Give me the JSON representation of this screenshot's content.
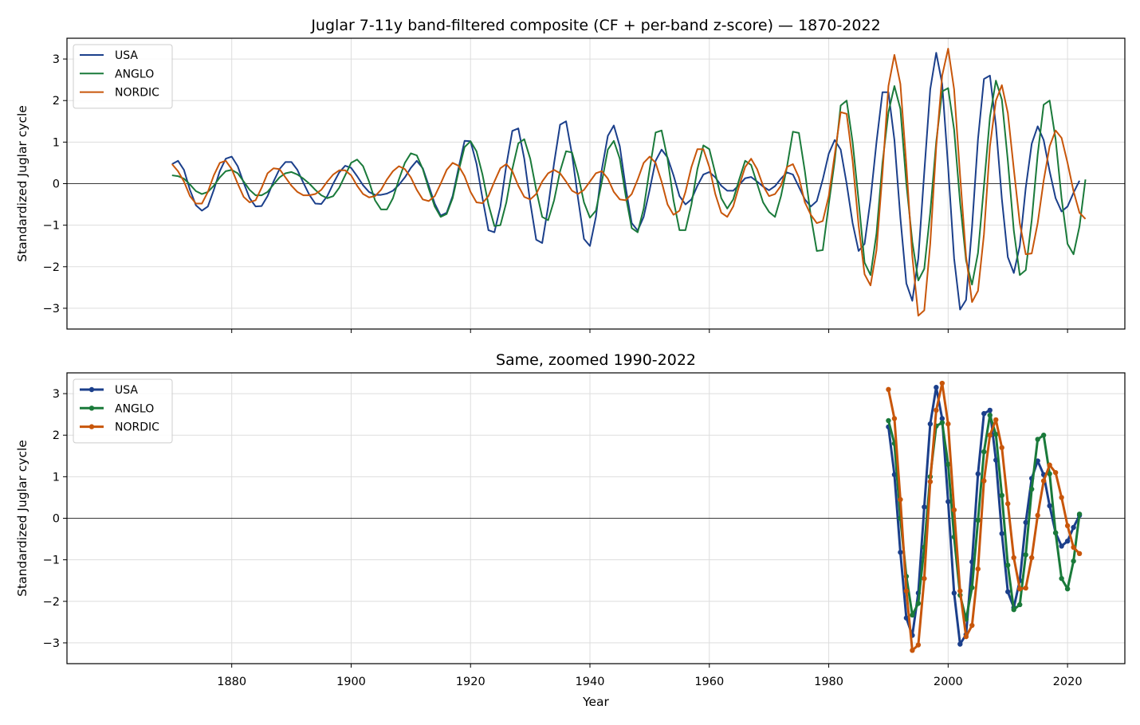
{
  "chart_data": [
    {
      "type": "line",
      "title": "Juglar 7-11y band-filtered composite (CF + per-band z-score) — 1870-2022",
      "xlabel": "",
      "ylabel": "Standardized Juglar cycle",
      "xlim": [
        1852.4,
        2029.6
      ],
      "ylim": [
        -3.5,
        3.5
      ],
      "xticks": [
        1880,
        1900,
        1920,
        1940,
        1960,
        1980,
        2000,
        2020
      ],
      "yticks": [
        -3,
        -2,
        -1,
        0,
        1,
        2,
        3
      ],
      "show_xtick_labels": false,
      "grid": true,
      "zero_line": true,
      "markers": false,
      "legend_position": "upper-left",
      "series": [
        {
          "name": "USA",
          "color": "#1b3f8b",
          "x_start": 1870,
          "values": [
            0.47,
            0.55,
            0.33,
            -0.15,
            -0.52,
            -0.65,
            -0.55,
            -0.15,
            0.3,
            0.6,
            0.65,
            0.42,
            0.02,
            -0.35,
            -0.55,
            -0.54,
            -0.3,
            0.05,
            0.35,
            0.52,
            0.52,
            0.33,
            0.02,
            -0.27,
            -0.48,
            -0.49,
            -0.3,
            0.0,
            0.27,
            0.43,
            0.38,
            0.18,
            -0.04,
            -0.2,
            -0.27,
            -0.27,
            -0.24,
            -0.17,
            -0.03,
            0.15,
            0.38,
            0.55,
            0.37,
            -0.05,
            -0.48,
            -0.77,
            -0.7,
            -0.3,
            0.38,
            1.03,
            1.02,
            0.48,
            -0.35,
            -1.12,
            -1.17,
            -0.55,
            0.45,
            1.27,
            1.33,
            0.6,
            -0.45,
            -1.35,
            -1.43,
            -0.55,
            0.5,
            1.42,
            1.5,
            0.7,
            -0.35,
            -1.33,
            -1.5,
            -0.8,
            0.35,
            1.15,
            1.4,
            0.9,
            -0.1,
            -0.95,
            -1.13,
            -0.8,
            -0.15,
            0.55,
            0.82,
            0.63,
            0.2,
            -0.3,
            -0.5,
            -0.38,
            -0.05,
            0.22,
            0.28,
            0.15,
            -0.05,
            -0.17,
            -0.17,
            -0.03,
            0.13,
            0.16,
            0.05,
            -0.07,
            -0.16,
            -0.06,
            0.12,
            0.27,
            0.22,
            -0.08,
            -0.38,
            -0.55,
            -0.42,
            0.1,
            0.72,
            1.05,
            0.82,
            0.0,
            -0.95,
            -1.62,
            -1.45,
            -0.38,
            1.0,
            2.2,
            2.2,
            1.05,
            -0.82,
            -2.4,
            -2.82,
            -1.8,
            0.27,
            2.27,
            3.15,
            2.4,
            0.4,
            -1.8,
            -3.03,
            -2.8,
            -1.05,
            1.07,
            2.52,
            2.6,
            1.4,
            -0.37,
            -1.77,
            -2.15,
            -1.5,
            -0.1,
            0.96,
            1.38,
            1.05,
            0.3,
            -0.35,
            -0.67,
            -0.55,
            -0.22,
            0.07
          ]
        },
        {
          "name": "ANGLO",
          "color": "#1a7a3a",
          "x_start": 1870,
          "values": [
            0.2,
            0.18,
            0.12,
            -0.02,
            -0.18,
            -0.25,
            -0.2,
            -0.05,
            0.15,
            0.3,
            0.33,
            0.25,
            0.05,
            -0.15,
            -0.28,
            -0.28,
            -0.2,
            -0.02,
            0.15,
            0.25,
            0.28,
            0.22,
            0.12,
            0.0,
            -0.15,
            -0.28,
            -0.35,
            -0.3,
            -0.1,
            0.2,
            0.5,
            0.58,
            0.42,
            0.05,
            -0.4,
            -0.62,
            -0.62,
            -0.35,
            0.1,
            0.5,
            0.73,
            0.68,
            0.35,
            -0.12,
            -0.55,
            -0.8,
            -0.73,
            -0.35,
            0.3,
            0.88,
            1.02,
            0.78,
            0.22,
            -0.5,
            -1.02,
            -1.0,
            -0.45,
            0.35,
            0.97,
            1.07,
            0.6,
            -0.15,
            -0.8,
            -0.88,
            -0.4,
            0.3,
            0.78,
            0.75,
            0.22,
            -0.45,
            -0.82,
            -0.65,
            0.05,
            0.82,
            1.03,
            0.6,
            -0.3,
            -1.07,
            -1.17,
            -0.6,
            0.35,
            1.23,
            1.28,
            0.6,
            -0.4,
            -1.12,
            -1.12,
            -0.5,
            0.35,
            0.92,
            0.83,
            0.25,
            -0.35,
            -0.6,
            -0.38,
            0.1,
            0.55,
            0.45,
            0.0,
            -0.45,
            -0.68,
            -0.8,
            -0.3,
            0.4,
            1.25,
            1.22,
            0.3,
            -0.78,
            -1.62,
            -1.6,
            -0.5,
            0.55,
            1.88,
            2.0,
            1.0,
            -0.4,
            -1.9,
            -2.2,
            -1.2,
            0.5,
            1.72,
            2.35,
            1.8,
            0.0,
            -1.4,
            -2.33,
            -2.05,
            -0.7,
            1.0,
            2.22,
            2.3,
            1.3,
            -0.45,
            -1.85,
            -2.43,
            -1.67,
            -0.05,
            1.6,
            2.48,
            2.02,
            0.55,
            -1.13,
            -2.2,
            -2.08,
            -0.88,
            0.7,
            1.9,
            2.0,
            1.07,
            -0.35,
            -1.45,
            -1.7,
            -1.03,
            0.1
          ]
        },
        {
          "name": "NORDIC",
          "color": "#c8560a",
          "x_start": 1870,
          "values": [
            0.47,
            0.3,
            0.05,
            -0.3,
            -0.48,
            -0.48,
            -0.2,
            0.2,
            0.5,
            0.55,
            0.35,
            0.0,
            -0.32,
            -0.45,
            -0.4,
            -0.1,
            0.25,
            0.37,
            0.35,
            0.15,
            -0.05,
            -0.2,
            -0.28,
            -0.28,
            -0.25,
            -0.15,
            0.05,
            0.22,
            0.32,
            0.32,
            0.2,
            -0.05,
            -0.25,
            -0.33,
            -0.3,
            -0.15,
            0.1,
            0.3,
            0.42,
            0.35,
            0.15,
            -0.15,
            -0.38,
            -0.42,
            -0.3,
            0.0,
            0.33,
            0.5,
            0.43,
            0.18,
            -0.2,
            -0.45,
            -0.47,
            -0.3,
            0.05,
            0.37,
            0.47,
            0.3,
            -0.05,
            -0.32,
            -0.38,
            -0.25,
            0.05,
            0.25,
            0.33,
            0.25,
            0.05,
            -0.17,
            -0.25,
            -0.15,
            0.05,
            0.25,
            0.3,
            0.12,
            -0.2,
            -0.38,
            -0.4,
            -0.25,
            0.1,
            0.5,
            0.65,
            0.5,
            0.05,
            -0.5,
            -0.75,
            -0.65,
            -0.2,
            0.4,
            0.83,
            0.83,
            0.4,
            -0.25,
            -0.7,
            -0.8,
            -0.55,
            -0.05,
            0.4,
            0.6,
            0.35,
            -0.05,
            -0.3,
            -0.25,
            -0.05,
            0.4,
            0.47,
            0.15,
            -0.45,
            -0.75,
            -0.95,
            -0.9,
            -0.3,
            0.7,
            1.72,
            1.68,
            0.55,
            -1.0,
            -2.18,
            -2.45,
            -1.6,
            0.25,
            2.35,
            3.1,
            2.4,
            0.45,
            -1.75,
            -3.18,
            -3.05,
            -1.45,
            0.88,
            2.6,
            3.25,
            2.27,
            0.2,
            -1.75,
            -2.85,
            -2.58,
            -1.22,
            0.9,
            2.0,
            2.37,
            1.7,
            0.35,
            -0.95,
            -1.7,
            -1.68,
            -0.95,
            0.07,
            0.9,
            1.28,
            1.1,
            0.5,
            -0.18,
            -0.7,
            -0.85
          ]
        }
      ]
    },
    {
      "type": "line",
      "title": "Same, zoomed 1990-2022",
      "xlabel": "Year",
      "ylabel": "Standardized Juglar cycle",
      "xlim": [
        1852.4,
        2029.6
      ],
      "ylim": [
        -3.5,
        3.5
      ],
      "xticks": [
        1880,
        1900,
        1920,
        1940,
        1960,
        1980,
        2000,
        2020
      ],
      "yticks": [
        -3,
        -2,
        -1,
        0,
        1,
        2,
        3
      ],
      "show_xtick_labels": true,
      "grid": true,
      "zero_line": true,
      "markers": true,
      "legend_position": "upper-left",
      "series": [
        {
          "name": "USA",
          "color": "#1b3f8b",
          "x_start": 1990,
          "values": [
            2.2,
            1.05,
            -0.82,
            -2.4,
            -2.82,
            -1.8,
            0.27,
            2.27,
            3.15,
            2.4,
            0.4,
            -1.8,
            -3.03,
            -2.8,
            -1.05,
            1.07,
            2.52,
            2.6,
            1.4,
            -0.37,
            -1.77,
            -2.15,
            -1.5,
            -0.1,
            0.96,
            1.38,
            1.05,
            0.3,
            -0.35,
            -0.67,
            -0.55,
            -0.22,
            0.07
          ]
        },
        {
          "name": "ANGLO",
          "color": "#1a7a3a",
          "x_start": 1990,
          "values": [
            2.35,
            1.8,
            0.0,
            -1.4,
            -2.33,
            -2.05,
            -0.7,
            1.0,
            2.22,
            2.3,
            1.3,
            -0.45,
            -1.85,
            -2.43,
            -1.67,
            -0.05,
            1.6,
            2.48,
            2.02,
            0.55,
            -1.13,
            -2.2,
            -2.08,
            -0.88,
            0.7,
            1.9,
            2.0,
            1.07,
            -0.35,
            -1.45,
            -1.7,
            -1.03,
            0.1
          ]
        },
        {
          "name": "NORDIC",
          "color": "#c8560a",
          "x_start": 1990,
          "values": [
            3.1,
            2.4,
            0.45,
            -1.75,
            -3.18,
            -3.05,
            -1.45,
            0.88,
            2.6,
            3.25,
            2.27,
            0.2,
            -1.75,
            -2.85,
            -2.58,
            -1.22,
            0.9,
            2.0,
            2.37,
            1.7,
            0.35,
            -0.95,
            -1.7,
            -1.68,
            -0.95,
            0.07,
            0.9,
            1.28,
            1.1,
            0.5,
            -0.18,
            -0.7,
            -0.85
          ]
        }
      ]
    }
  ]
}
